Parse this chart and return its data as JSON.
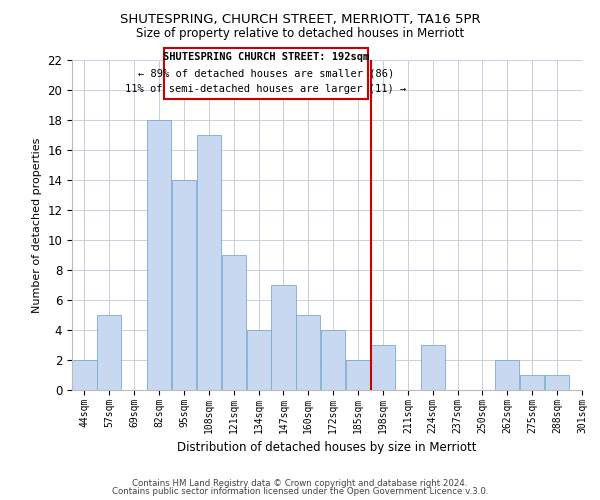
{
  "title": "SHUTESPRING, CHURCH STREET, MERRIOTT, TA16 5PR",
  "subtitle": "Size of property relative to detached houses in Merriott",
  "xlabel": "Distribution of detached houses by size in Merriott",
  "ylabel": "Number of detached properties",
  "bin_labels": [
    "44sqm",
    "57sqm",
    "69sqm",
    "82sqm",
    "95sqm",
    "108sqm",
    "121sqm",
    "134sqm",
    "147sqm",
    "160sqm",
    "172sqm",
    "185sqm",
    "198sqm",
    "211sqm",
    "224sqm",
    "237sqm",
    "250sqm",
    "262sqm",
    "275sqm",
    "288sqm",
    "301sqm"
  ],
  "counts": [
    2,
    5,
    0,
    18,
    14,
    17,
    9,
    4,
    7,
    5,
    4,
    2,
    3,
    0,
    3,
    0,
    0,
    2,
    1,
    1
  ],
  "bar_color": "#c8d8f0",
  "bar_edge_color": "#7aaad0",
  "vline_after_bin": 11,
  "vline_color": "#cc0000",
  "annotation_title": "SHUTESPRING CHURCH STREET: 192sqm",
  "annotation_line1": "← 89% of detached houses are smaller (86)",
  "annotation_line2": "11% of semi-detached houses are larger (11) →",
  "annotation_box_color": "#ffffff",
  "annotation_box_edge_color": "#cc0000",
  "ylim": [
    0,
    22
  ],
  "yticks": [
    0,
    2,
    4,
    6,
    8,
    10,
    12,
    14,
    16,
    18,
    20,
    22
  ],
  "footer1": "Contains HM Land Registry data © Crown copyright and database right 2024.",
  "footer2": "Contains public sector information licensed under the Open Government Licence v.3.0.",
  "background_color": "#ffffff",
  "grid_color": "#c8d0e0",
  "title_fontsize": 9.5,
  "subtitle_fontsize": 8.5
}
